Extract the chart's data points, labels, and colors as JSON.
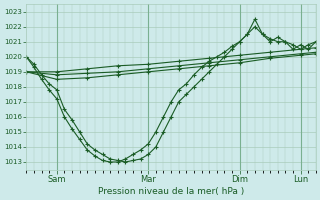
{
  "xlabel": "Pression niveau de la mer( hPa )",
  "bg_color": "#ceeaea",
  "grid_color": "#aaccbb",
  "line_color": "#1a5c25",
  "ylim": [
    1012.5,
    1023.5
  ],
  "yticks": [
    1013,
    1014,
    1015,
    1016,
    1017,
    1018,
    1019,
    1020,
    1021,
    1022,
    1023
  ],
  "xlim": [
    0,
    228
  ],
  "x_tick_positions": [
    24,
    96,
    168,
    216
  ],
  "x_tick_labels": [
    "Sam",
    "Mar",
    "Dim",
    "Lun"
  ],
  "vlines": [
    24,
    96,
    168,
    216
  ],
  "series": [
    {
      "x": [
        0,
        24,
        48,
        72,
        96,
        120,
        144,
        168,
        192,
        216,
        228
      ],
      "y": [
        1019.0,
        1019.0,
        1019.2,
        1019.4,
        1019.5,
        1019.7,
        1019.9,
        1020.1,
        1020.3,
        1020.5,
        1020.6
      ]
    },
    {
      "x": [
        0,
        24,
        48,
        72,
        96,
        120,
        144,
        168,
        192,
        216,
        228
      ],
      "y": [
        1019.0,
        1018.8,
        1018.9,
        1019.0,
        1019.2,
        1019.4,
        1019.6,
        1019.8,
        1020.0,
        1020.2,
        1020.3
      ]
    },
    {
      "x": [
        0,
        24,
        48,
        72,
        96,
        120,
        144,
        168,
        192,
        216,
        228
      ],
      "y": [
        1019.0,
        1018.5,
        1018.6,
        1018.8,
        1019.0,
        1019.2,
        1019.4,
        1019.6,
        1019.9,
        1020.1,
        1020.2
      ]
    },
    {
      "x": [
        0,
        6,
        12,
        18,
        24,
        30,
        36,
        42,
        48,
        54,
        60,
        66,
        72,
        78,
        84,
        90,
        96,
        102,
        108,
        114,
        120,
        126,
        132,
        138,
        144,
        150,
        156,
        162,
        168,
        174,
        180,
        186,
        192,
        198,
        204,
        210,
        216,
        222,
        228
      ],
      "y": [
        1020.0,
        1019.5,
        1018.8,
        1018.2,
        1017.8,
        1016.5,
        1015.8,
        1015.0,
        1014.2,
        1013.8,
        1013.5,
        1013.2,
        1013.1,
        1013.0,
        1013.1,
        1013.2,
        1013.5,
        1014.0,
        1015.0,
        1016.0,
        1017.0,
        1017.5,
        1018.0,
        1018.5,
        1019.0,
        1019.5,
        1020.0,
        1020.5,
        1021.0,
        1021.5,
        1022.5,
        1021.5,
        1021.0,
        1021.3,
        1021.0,
        1020.5,
        1020.8,
        1020.5,
        1021.0
      ]
    },
    {
      "x": [
        0,
        6,
        12,
        18,
        24,
        30,
        36,
        42,
        48,
        54,
        60,
        66,
        72,
        78,
        84,
        90,
        96,
        102,
        108,
        114,
        120,
        126,
        132,
        138,
        144,
        150,
        156,
        162,
        168,
        174,
        180,
        186,
        192,
        198,
        204,
        210,
        216,
        222,
        228
      ],
      "y": [
        1020.0,
        1019.3,
        1018.5,
        1017.8,
        1017.2,
        1016.0,
        1015.2,
        1014.5,
        1013.8,
        1013.4,
        1013.1,
        1013.0,
        1013.0,
        1013.2,
        1013.5,
        1013.8,
        1014.2,
        1015.0,
        1016.0,
        1017.0,
        1017.8,
        1018.2,
        1018.8,
        1019.3,
        1019.7,
        1020.0,
        1020.3,
        1020.7,
        1021.0,
        1021.5,
        1022.0,
        1021.5,
        1021.2,
        1021.0,
        1021.0,
        1020.8,
        1020.5,
        1020.8,
        1021.0
      ]
    }
  ]
}
